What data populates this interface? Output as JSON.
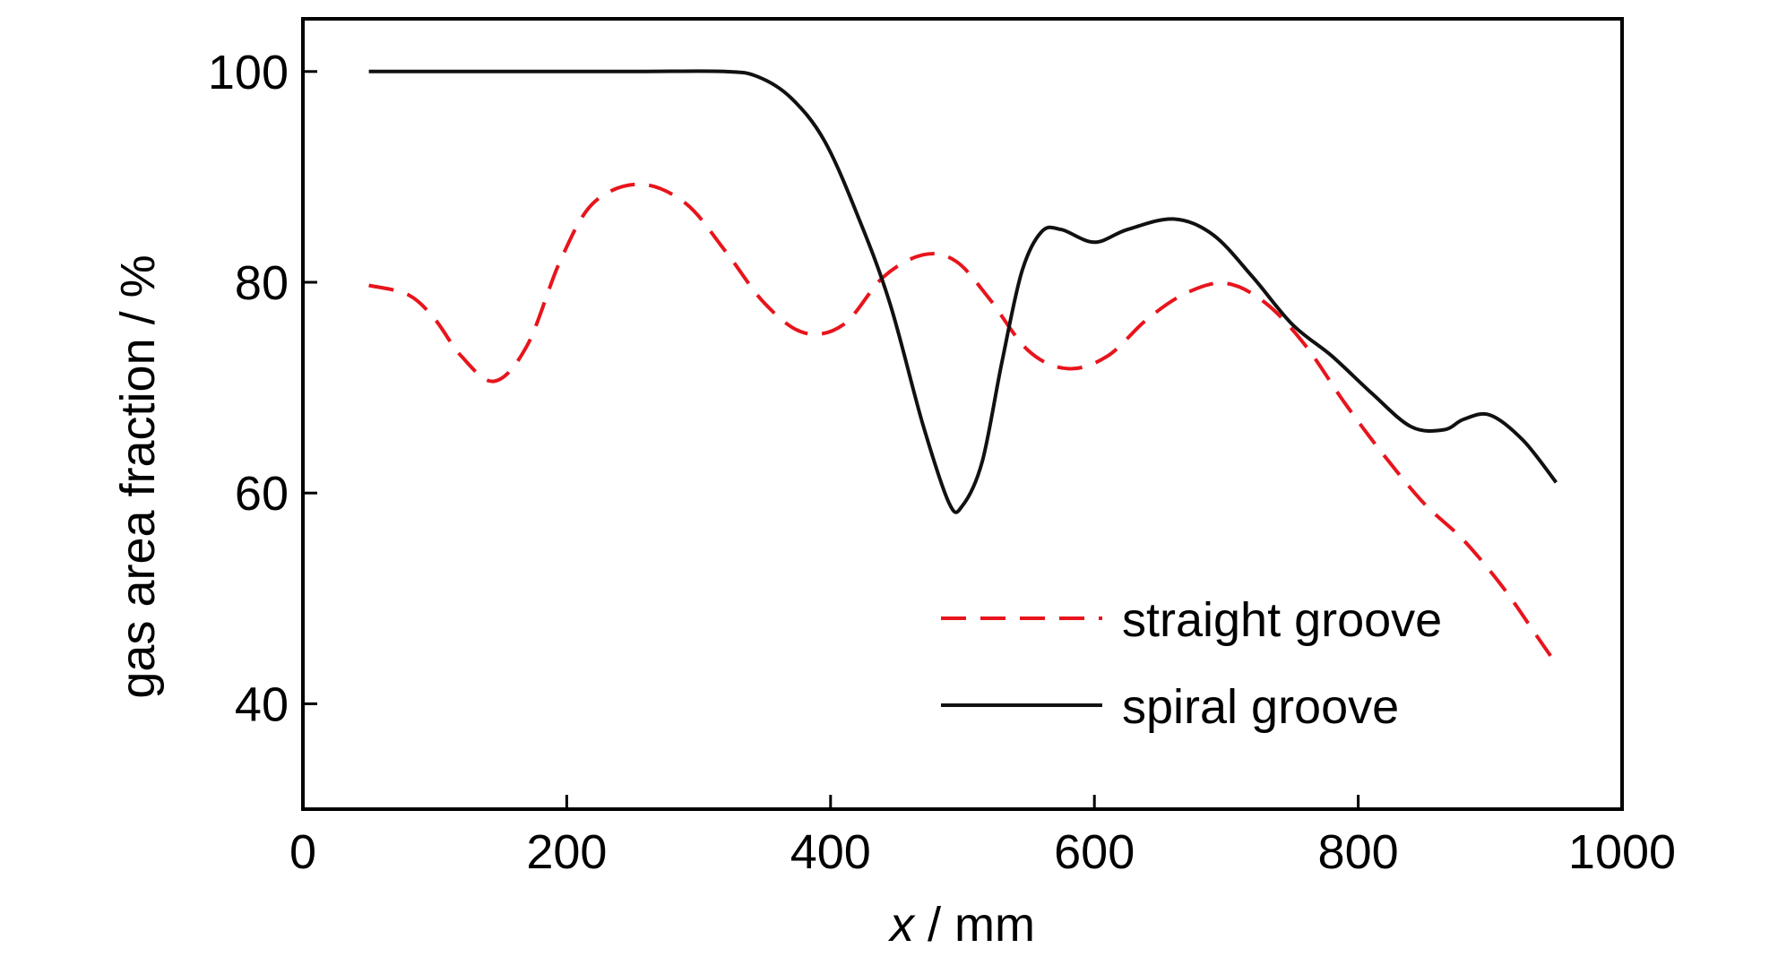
{
  "chart_data": {
    "type": "line",
    "xlabel_italic": "x",
    "xlabel_rest": " / mm",
    "ylabel": "gas area fraction / %",
    "xlim": [
      0,
      1000
    ],
    "ylim": [
      30,
      105
    ],
    "xticks": [
      0,
      200,
      400,
      600,
      800,
      1000
    ],
    "yticks": [
      40,
      60,
      80,
      100
    ],
    "grid": false,
    "legend_placement": "bottom-right",
    "series": [
      {
        "name": "straight groove",
        "color": "#e8141c",
        "dash": "dashed",
        "x": [
          50,
          80,
          100,
          120,
          145,
          170,
          195,
          220,
          255,
          290,
          320,
          350,
          380,
          410,
          440,
          470,
          495,
          520,
          550,
          580,
          610,
          640,
          670,
          700,
          730,
          760,
          790,
          820,
          850,
          880,
          910,
          935,
          950
        ],
        "y": [
          79.7,
          78.8,
          76.5,
          73.0,
          70.6,
          74.0,
          82.0,
          87.5,
          89.3,
          87.5,
          83.0,
          78.0,
          75.2,
          76.0,
          80.5,
          82.6,
          82.0,
          78.5,
          73.5,
          71.8,
          73.0,
          76.5,
          79.0,
          79.9,
          78.0,
          74.0,
          68.5,
          63.5,
          59.0,
          55.5,
          51.0,
          46.5,
          43.8
        ]
      },
      {
        "name": "spiral groove",
        "color": "#111111",
        "dash": "solid",
        "x": [
          50,
          150,
          250,
          320,
          345,
          370,
          395,
          420,
          445,
          470,
          490,
          500,
          515,
          530,
          545,
          560,
          575,
          600,
          625,
          660,
          690,
          720,
          750,
          780,
          810,
          840,
          865,
          880,
          900,
          925,
          950
        ],
        "y": [
          100,
          100,
          100,
          100,
          99.5,
          97.5,
          93.5,
          86.5,
          78.0,
          66.5,
          59.0,
          58.8,
          63.0,
          72.5,
          81.0,
          84.8,
          85.0,
          83.8,
          85.0,
          86.0,
          84.5,
          80.5,
          76.0,
          73.0,
          69.5,
          66.3,
          66.0,
          67.0,
          67.4,
          65.0,
          61.0
        ]
      }
    ]
  }
}
